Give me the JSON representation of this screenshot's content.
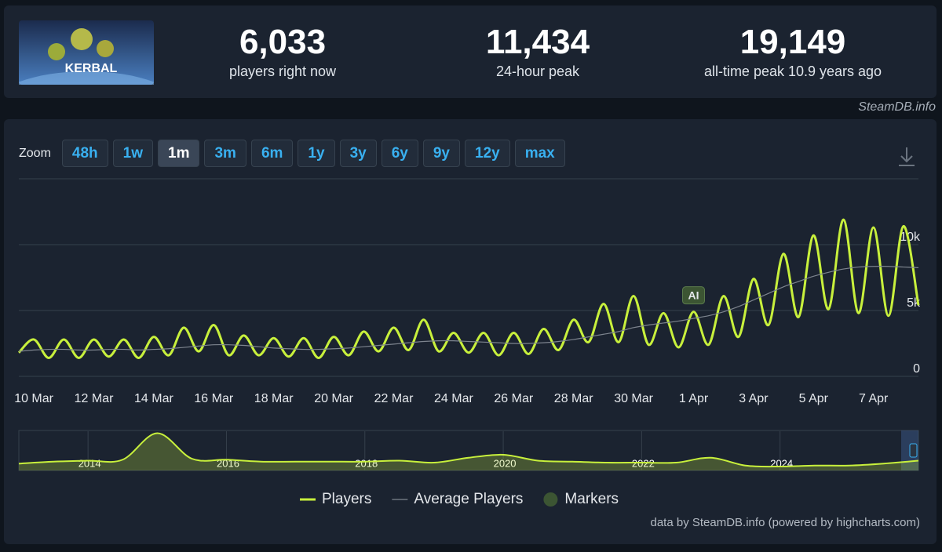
{
  "header": {
    "logo_text": "KERBAL",
    "stats": [
      {
        "value": "6,033",
        "label": "players right now"
      },
      {
        "value": "11,434",
        "label": "24-hour peak"
      },
      {
        "value": "19,149",
        "label": "all-time peak 10.9 years ago"
      }
    ],
    "credit": "SteamDB.info"
  },
  "zoom": {
    "label": "Zoom",
    "options": [
      "48h",
      "1w",
      "1m",
      "3m",
      "6m",
      "1y",
      "3y",
      "6y",
      "9y",
      "12y",
      "max"
    ],
    "active": "1m"
  },
  "chart_data": [
    {
      "type": "line",
      "categories": [
        null,
        "10 Mar",
        null,
        null,
        null,
        "12 Mar",
        null,
        null,
        null,
        "14 Mar",
        null,
        null,
        null,
        "16 Mar",
        null,
        null,
        null,
        "18 Mar",
        null,
        null,
        null,
        "20 Mar",
        null,
        null,
        null,
        "22 Mar",
        null,
        null,
        null,
        "24 Mar",
        null,
        null,
        null,
        "26 Mar",
        null,
        null,
        null,
        "28 Mar",
        null,
        null,
        null,
        "30 Mar",
        null,
        null,
        null,
        "1 Apr",
        null,
        null,
        null,
        "3 Apr",
        null,
        null,
        null,
        "5 Apr",
        null,
        null,
        null,
        "7 Apr",
        null,
        null,
        null
      ],
      "series": [
        {
          "name": "Players",
          "color": "#c8f03c",
          "values": [
            1800,
            2800,
            1400,
            2800,
            1400,
            2800,
            1500,
            2800,
            1400,
            3000,
            1600,
            3700,
            1900,
            3900,
            1600,
            3100,
            1600,
            2900,
            1500,
            2900,
            1400,
            3000,
            1600,
            3400,
            1900,
            3700,
            2000,
            4300,
            1900,
            3300,
            1800,
            3300,
            1600,
            3300,
            1700,
            3600,
            2000,
            4300,
            2600,
            5500,
            2600,
            6100,
            2400,
            4800,
            2200,
            4900,
            2400,
            6100,
            3000,
            7400,
            3900,
            9300,
            4500,
            10700,
            5100,
            11900,
            4800,
            11300,
            4600,
            11400,
            5400
          ]
        },
        {
          "name": "Average Players",
          "color": "#7d848e",
          "values": [
            1900,
            2000,
            2050,
            2050,
            2000,
            2000,
            2050,
            2050,
            2000,
            2050,
            2100,
            2200,
            2300,
            2400,
            2400,
            2350,
            2250,
            2150,
            2100,
            2050,
            2050,
            2100,
            2150,
            2250,
            2350,
            2450,
            2550,
            2650,
            2700,
            2700,
            2650,
            2600,
            2550,
            2500,
            2500,
            2550,
            2650,
            2800,
            3000,
            3200,
            3400,
            3700,
            3900,
            4050,
            4200,
            4400,
            4600,
            4900,
            5300,
            5800,
            6300,
            6800,
            7200,
            7600,
            7900,
            8150,
            8300,
            8350,
            8350,
            8300,
            8250
          ]
        }
      ],
      "markers": {
        "name": "Markers",
        "color": "#3c5533",
        "points": [
          {
            "label": "AI",
            "x": "1 Apr"
          }
        ]
      },
      "ylim": [
        0,
        15000
      ],
      "yticks": [
        0,
        {
          "value": 5000,
          "label": "5k"
        },
        {
          "value": 10000,
          "label": "10k"
        }
      ],
      "grid": true,
      "legend": "bottom"
    },
    {
      "type": "area",
      "categories": [
        null,
        null,
        "2014",
        null,
        null,
        null,
        "2016",
        null,
        null,
        null,
        "2018",
        null,
        null,
        null,
        "2020",
        null,
        null,
        null,
        "2022",
        null,
        null,
        null,
        "2024",
        null,
        null,
        null,
        null
      ],
      "series": [
        {
          "color": "#c8f03c",
          "values": [
            3500,
            4500,
            5000,
            5500,
            19000,
            6000,
            5500,
            4500,
            4500,
            4500,
            4500,
            5000,
            4000,
            6500,
            8000,
            5000,
            4500,
            4000,
            4000,
            4000,
            6500,
            2500,
            2000,
            2500,
            2500,
            3500,
            5000
          ]
        }
      ],
      "ylim": [
        0,
        20000
      ]
    }
  ],
  "footer": "data by SteamDB.info (powered by highcharts.com)"
}
